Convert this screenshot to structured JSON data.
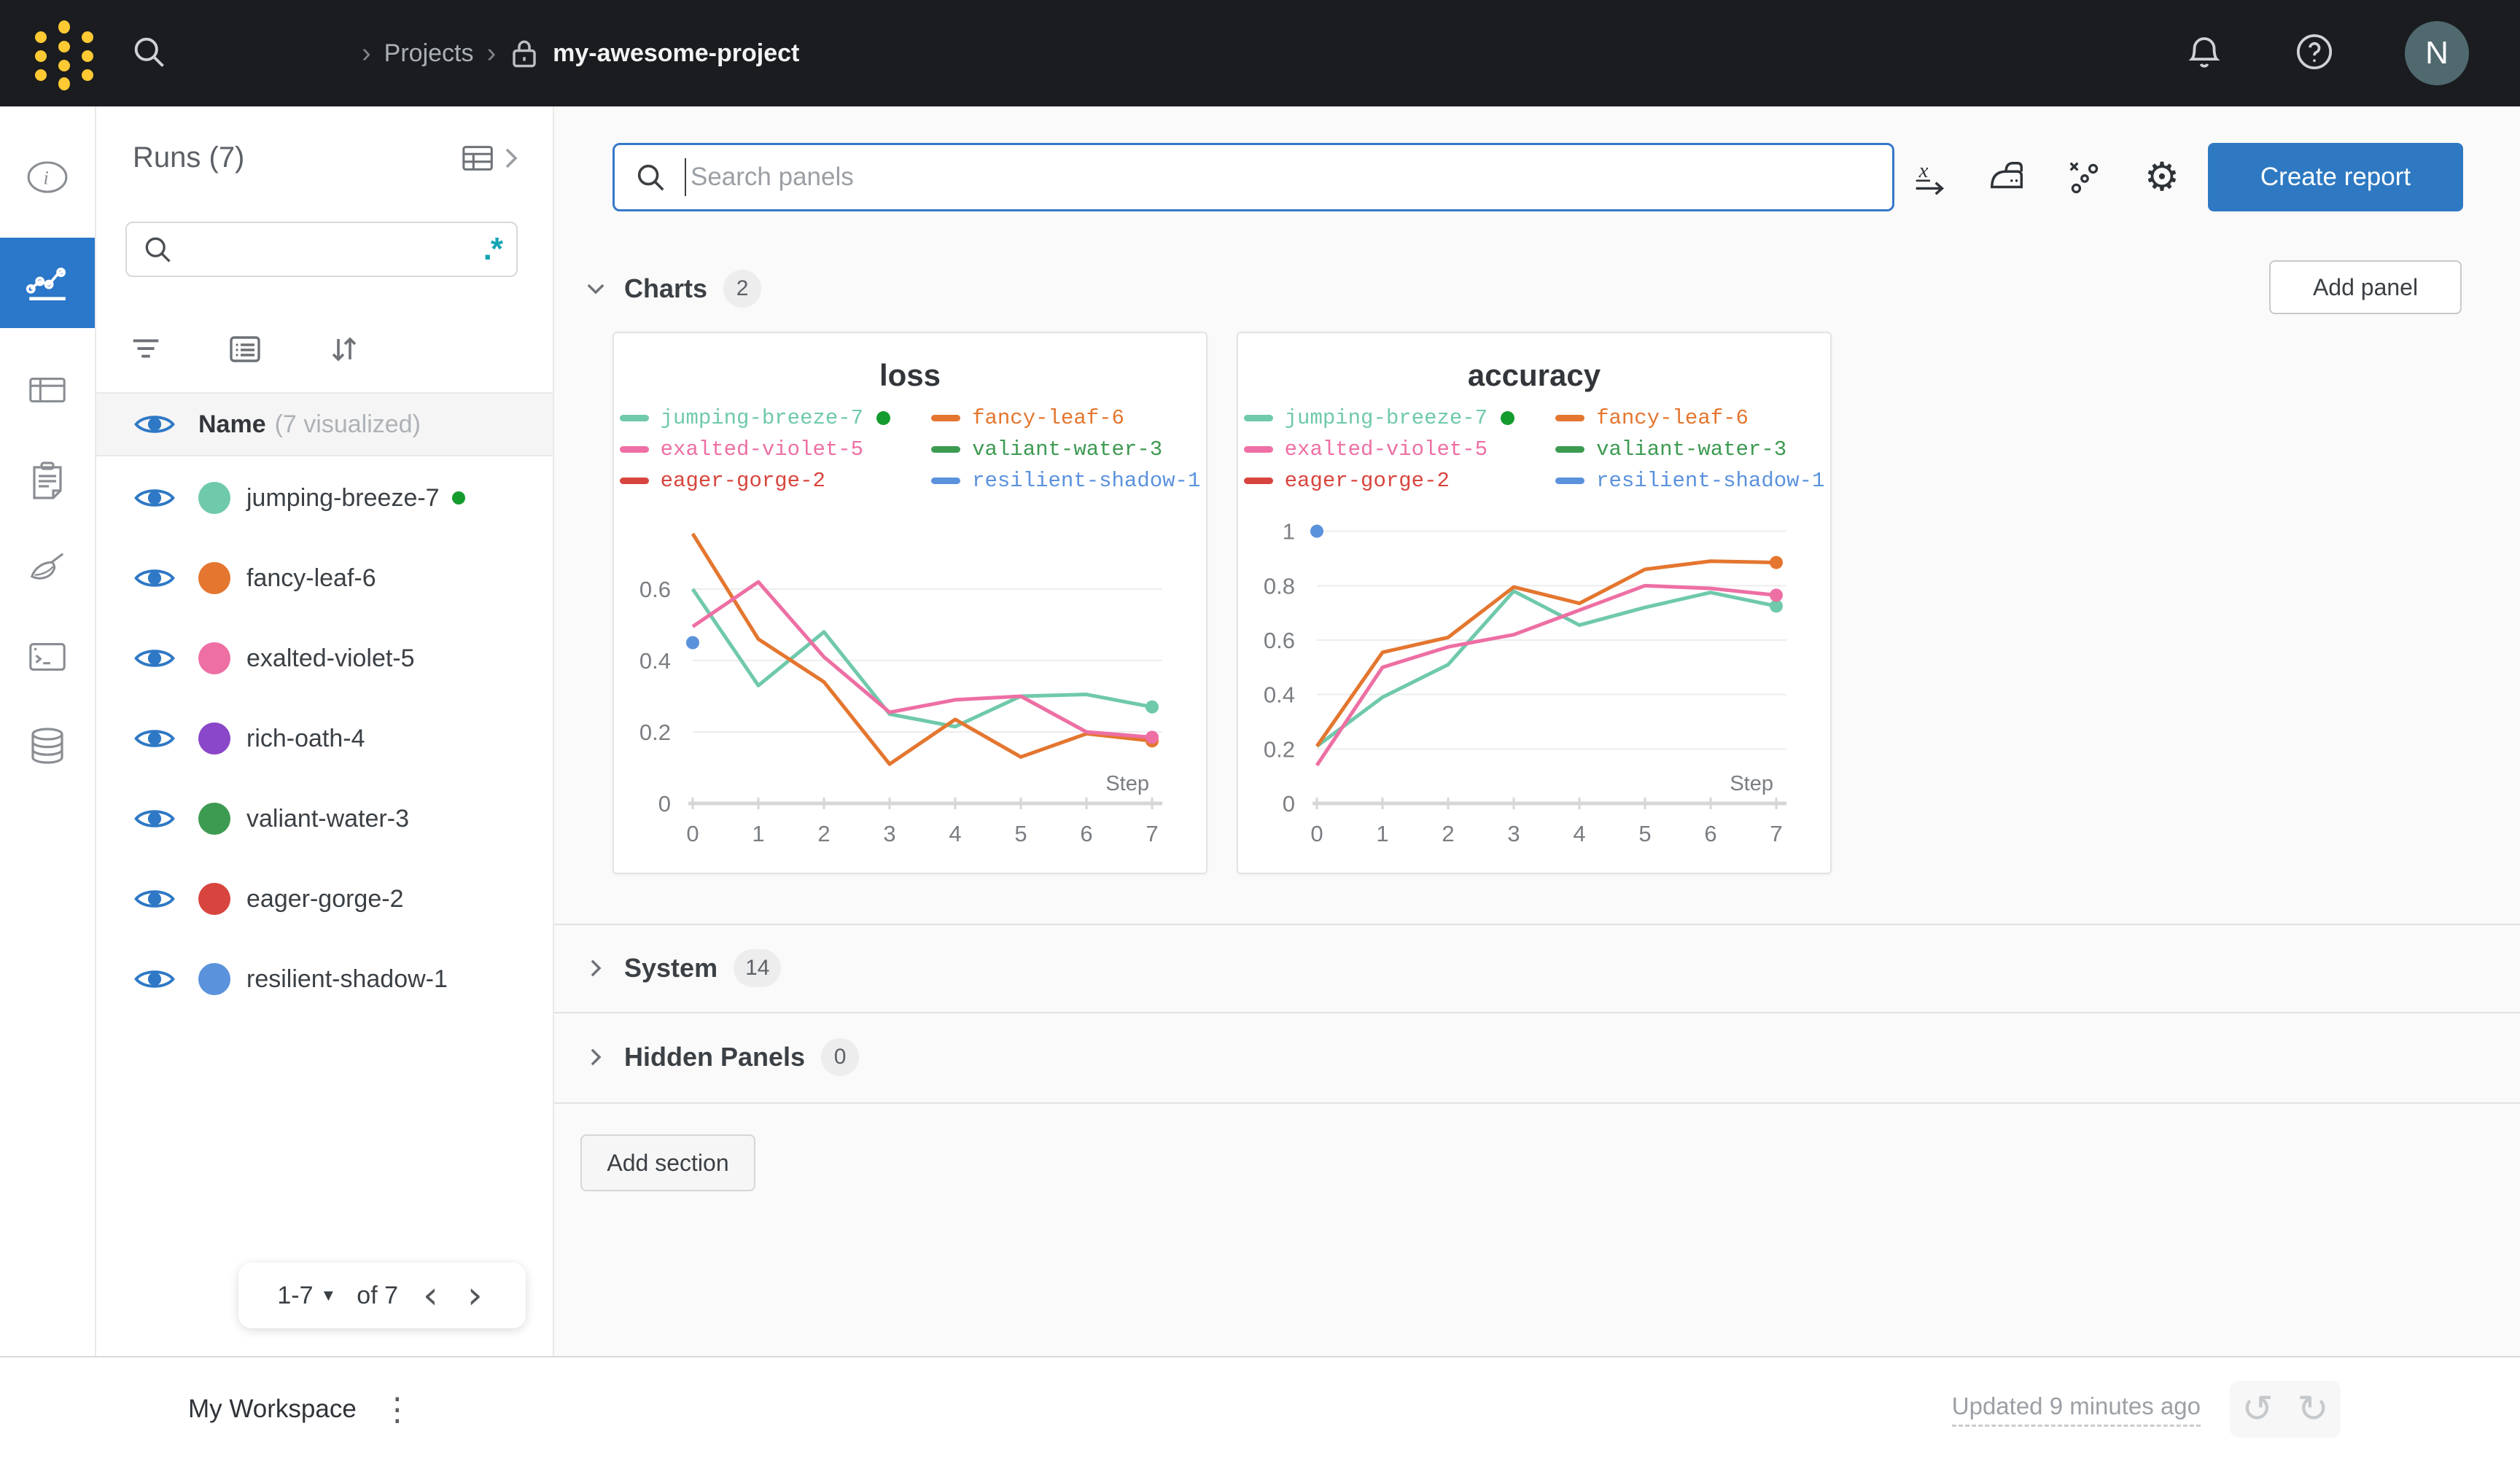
{
  "colors": {
    "accent_blue": "#2e79c5",
    "header_bg": "#1a1c1f",
    "logo_gold": "#ffc933",
    "running_green": "#149b2e",
    "avatar_bg": "#50696f"
  },
  "header": {
    "breadcrumb_parent": "Projects",
    "breadcrumb_current": "my-awesome-project",
    "avatar_initial": "N"
  },
  "sidebar": {
    "title": "Runs (7)",
    "name_header": "Name",
    "visualized_note": "(7 visualized)",
    "pagination": {
      "range": "1-7",
      "of": "of 7"
    }
  },
  "runs": [
    {
      "name": "jumping-breeze-7",
      "color": "#6fc9ab",
      "running": true
    },
    {
      "name": "fancy-leaf-6",
      "color": "#e4762f",
      "running": false
    },
    {
      "name": "exalted-violet-5",
      "color": "#ed6fa4",
      "running": false
    },
    {
      "name": "rich-oath-4",
      "color": "#8a47c9",
      "running": false
    },
    {
      "name": "valiant-water-3",
      "color": "#3d9a51",
      "running": false
    },
    {
      "name": "eager-gorge-2",
      "color": "#d8453e",
      "running": false
    },
    {
      "name": "resilient-shadow-1",
      "color": "#5a92dc",
      "running": false
    }
  ],
  "toolbar": {
    "search_placeholder": "Search panels",
    "create_report_label": "Create report",
    "add_panel_label": "Add panel",
    "add_section_label": "Add section"
  },
  "sections": {
    "charts": {
      "label": "Charts",
      "count": "2"
    },
    "system": {
      "label": "System",
      "count": "14"
    },
    "hidden": {
      "label": "Hidden Panels",
      "count": "0"
    }
  },
  "footer": {
    "workspace_label": "My Workspace",
    "updated_text": "Updated 9 minutes ago"
  },
  "chart_data": [
    {
      "type": "line",
      "title": "loss",
      "xlabel": "Step",
      "x": [
        0,
        1,
        2,
        3,
        4,
        5,
        6,
        7
      ],
      "ylim": [
        0,
        0.8
      ],
      "yticks": [
        0,
        0.2,
        0.4,
        0.6
      ],
      "legend": [
        "jumping-breeze-7",
        "fancy-leaf-6",
        "exalted-violet-5",
        "valiant-water-3",
        "eager-gorge-2",
        "resilient-shadow-1"
      ],
      "series": [
        {
          "name": "jumping-breeze-7",
          "values": [
            0.6,
            0.33,
            0.48,
            0.25,
            0.215,
            0.3,
            0.305,
            0.27
          ],
          "end_dot": true
        },
        {
          "name": "fancy-leaf-6",
          "values": [
            0.755,
            0.46,
            0.34,
            0.11,
            0.235,
            0.13,
            0.195,
            0.175
          ],
          "end_dot": true
        },
        {
          "name": "exalted-violet-5",
          "values": [
            0.495,
            0.62,
            0.41,
            0.255,
            0.29,
            0.3,
            0.2,
            0.185
          ],
          "end_dot": true
        }
      ],
      "points": [
        {
          "name": "resilient-shadow-1",
          "x": 0,
          "y": 0.45
        }
      ]
    },
    {
      "type": "line",
      "title": "accuracy",
      "xlabel": "Step",
      "x": [
        0,
        1,
        2,
        3,
        4,
        5,
        6,
        7
      ],
      "ylim": [
        0,
        1.05
      ],
      "yticks": [
        0,
        0.2,
        0.4,
        0.6,
        0.8,
        1
      ],
      "legend": [
        "jumping-breeze-7",
        "fancy-leaf-6",
        "exalted-violet-5",
        "valiant-water-3",
        "eager-gorge-2",
        "resilient-shadow-1"
      ],
      "series": [
        {
          "name": "jumping-breeze-7",
          "values": [
            0.21,
            0.39,
            0.51,
            0.78,
            0.655,
            0.72,
            0.775,
            0.725
          ],
          "end_dot": true
        },
        {
          "name": "fancy-leaf-6",
          "values": [
            0.21,
            0.555,
            0.61,
            0.795,
            0.735,
            0.86,
            0.89,
            0.885
          ],
          "end_dot": true
        },
        {
          "name": "exalted-violet-5",
          "values": [
            0.14,
            0.5,
            0.575,
            0.62,
            0.71,
            0.8,
            0.79,
            0.765
          ],
          "end_dot": true
        }
      ],
      "points": [
        {
          "name": "resilient-shadow-1",
          "x": 0,
          "y": 1.0
        }
      ]
    }
  ]
}
